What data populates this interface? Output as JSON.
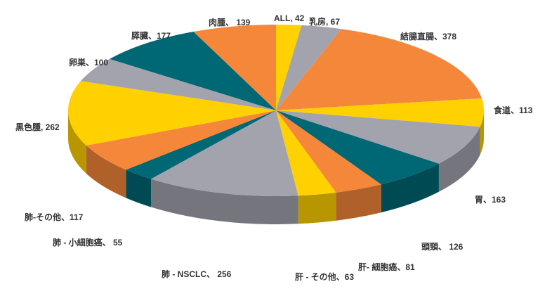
{
  "chart_data": {
    "type": "pie",
    "title": "",
    "style": "3d-pie",
    "slices": [
      {
        "label": "ALL, 42",
        "value": 42,
        "color": "#FFD100"
      },
      {
        "label": "乳房, 67",
        "value": 67,
        "color": "#A3A3AD"
      },
      {
        "label": "結腸直腸、378",
        "value": 378,
        "color": "#F5873A"
      },
      {
        "label": "食道、113",
        "value": 113,
        "color": "#FFD100"
      },
      {
        "label": "胃、163",
        "value": 163,
        "color": "#A3A3AD"
      },
      {
        "label": "頭頸、 126",
        "value": 126,
        "color": "#006775"
      },
      {
        "label": "肝- 細胞癌、81",
        "value": 81,
        "color": "#F5873A"
      },
      {
        "label": "肝 - その他、63",
        "value": 63,
        "color": "#FFD100"
      },
      {
        "label": "肺 - NSCLC、 256",
        "value": 256,
        "color": "#A3A3AD"
      },
      {
        "label": "肺 - 小細胞癌、 55",
        "value": 55,
        "color": "#006775"
      },
      {
        "label": "肺-その他、117",
        "value": 117,
        "color": "#F5873A"
      },
      {
        "label": "黒色腫, 262",
        "value": 262,
        "color": "#FFD100"
      },
      {
        "label": "卵巣、100",
        "value": 100,
        "color": "#A3A3AD"
      },
      {
        "label": "膵臓、177",
        "value": 177,
        "color": "#006775"
      },
      {
        "label": "肉腫、 139",
        "value": 139,
        "color": "#F5873A"
      }
    ]
  }
}
